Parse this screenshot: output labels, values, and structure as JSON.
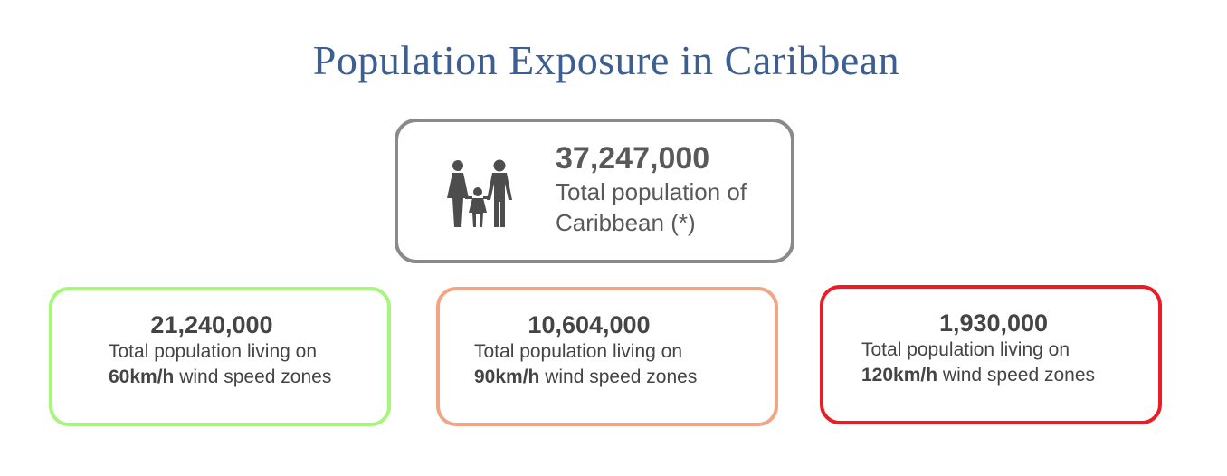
{
  "title": "Population Exposure in Caribbean",
  "total": {
    "icon": "family-icon",
    "number": "37,247,000",
    "label_line1": "Total population of",
    "label_line2": "Caribbean (*)",
    "border_color": "#8a8a8a"
  },
  "zones": [
    {
      "number": "21,240,000",
      "line1": "Total population living on",
      "speed": "60km/h",
      "suffix": " wind speed zones",
      "border_color": "#a6f57c"
    },
    {
      "number": "10,604,000",
      "line1": "Total population living on",
      "speed": "90km/h",
      "suffix": " wind speed zones",
      "border_color": "#f2a584"
    },
    {
      "number": "1,930,000",
      "line1": "Total population living on",
      "speed": "120km/h",
      "suffix": " wind speed zones",
      "border_color": "#ec1c24"
    }
  ],
  "colors": {
    "title": "#3c5f93",
    "text": "#595959"
  }
}
